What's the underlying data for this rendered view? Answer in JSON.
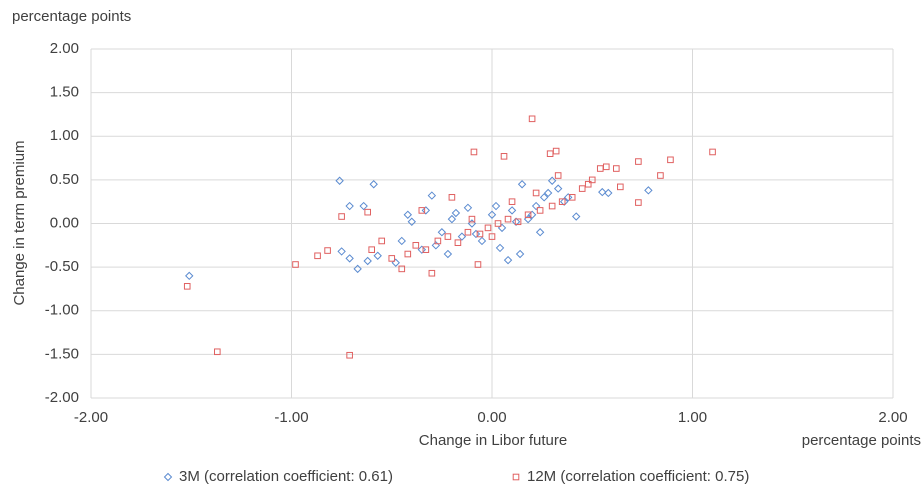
{
  "chart_data": {
    "type": "scatter",
    "y_unit": "percentage points",
    "x_unit": "percentage points",
    "xlabel": "Change in Libor future",
    "ylabel": "Change in term premium",
    "xlim": [
      -2,
      2
    ],
    "ylim": [
      -2,
      2
    ],
    "xticks": [
      {
        "value": -2,
        "label": "-2.00"
      },
      {
        "value": -1,
        "label": "-1.00"
      },
      {
        "value": 0,
        "label": "0.00"
      },
      {
        "value": 1,
        "label": "1.00"
      },
      {
        "value": 2,
        "label": "2.00"
      }
    ],
    "yticks": [
      {
        "value": -2,
        "label": "-2.00"
      },
      {
        "value": -1.5,
        "label": "-1.50"
      },
      {
        "value": -1,
        "label": "-1.00"
      },
      {
        "value": -0.5,
        "label": "-0.50"
      },
      {
        "value": 0,
        "label": "0.00"
      },
      {
        "value": 0.5,
        "label": "0.50"
      },
      {
        "value": 1,
        "label": "1.00"
      },
      {
        "value": 1.5,
        "label": "1.50"
      },
      {
        "value": 2,
        "label": "2.00"
      }
    ],
    "grid": true,
    "legend": "bottom",
    "series": [
      {
        "name": "3M (correlation coefficient: 0.61)",
        "color": "#5b8bd0",
        "marker": "diamond",
        "x": [
          -1.51,
          -0.76,
          -0.59,
          -0.64,
          -0.71,
          -0.75,
          -0.71,
          -0.67,
          -0.62,
          -0.57,
          0.78,
          0.58,
          0.55,
          0.42,
          0.3,
          0.15,
          0.08,
          0.14,
          -0.3,
          -0.4,
          -0.45,
          -0.35,
          -0.25,
          -0.2,
          -0.15,
          -0.1,
          -0.05,
          0.0,
          0.05,
          0.1,
          0.18,
          0.22,
          0.26,
          0.33,
          0.38,
          -0.48,
          -0.42,
          -0.28,
          -0.18,
          -0.08,
          0.02,
          0.12,
          0.2,
          0.28,
          0.36,
          -0.33,
          -0.22,
          -0.12,
          0.04,
          0.24
        ],
        "values": [
          -0.6,
          0.49,
          0.45,
          0.2,
          0.2,
          -0.32,
          -0.4,
          -0.52,
          -0.43,
          -0.37,
          0.38,
          0.35,
          0.36,
          0.08,
          0.49,
          0.45,
          -0.42,
          -0.35,
          0.32,
          0.02,
          -0.2,
          -0.3,
          -0.1,
          0.05,
          -0.15,
          0.0,
          -0.2,
          0.1,
          -0.05,
          0.15,
          0.05,
          0.2,
          0.3,
          0.4,
          0.3,
          -0.45,
          0.1,
          -0.25,
          0.12,
          -0.12,
          0.2,
          0.02,
          0.1,
          0.35,
          0.25,
          0.15,
          -0.35,
          0.18,
          -0.28,
          -0.1
        ]
      },
      {
        "name": "12M (correlation coefficient: 0.75)",
        "color": "#e06060",
        "marker": "square",
        "x": [
          -1.52,
          -1.37,
          -0.71,
          -0.98,
          -0.82,
          -0.87,
          -0.75,
          1.1,
          0.89,
          0.84,
          0.73,
          0.73,
          0.62,
          0.57,
          0.54,
          0.2,
          0.29,
          0.32,
          0.06,
          -0.09,
          -0.07,
          -0.3,
          -0.45,
          -0.6,
          -0.55,
          -0.5,
          -0.42,
          -0.38,
          -0.33,
          -0.27,
          -0.22,
          -0.17,
          -0.12,
          -0.06,
          -0.02,
          0.03,
          0.08,
          0.13,
          0.18,
          0.24,
          0.3,
          0.35,
          0.4,
          0.45,
          0.5,
          -0.35,
          -0.2,
          -0.1,
          0.0,
          0.1,
          0.22,
          0.33,
          0.48,
          0.64,
          -0.62
        ],
        "values": [
          -0.72,
          -1.47,
          -1.51,
          -0.47,
          -0.31,
          -0.37,
          0.08,
          0.82,
          0.73,
          0.55,
          0.71,
          0.24,
          0.63,
          0.65,
          0.63,
          1.2,
          0.8,
          0.83,
          0.77,
          0.82,
          -0.47,
          -0.57,
          -0.52,
          -0.3,
          -0.2,
          -0.4,
          -0.35,
          -0.25,
          -0.3,
          -0.2,
          -0.15,
          -0.22,
          -0.1,
          -0.12,
          -0.05,
          0.0,
          0.05,
          0.02,
          0.1,
          0.15,
          0.2,
          0.25,
          0.3,
          0.4,
          0.5,
          0.15,
          0.3,
          0.05,
          -0.15,
          0.25,
          0.35,
          0.55,
          0.45,
          0.42,
          0.13
        ]
      }
    ]
  }
}
